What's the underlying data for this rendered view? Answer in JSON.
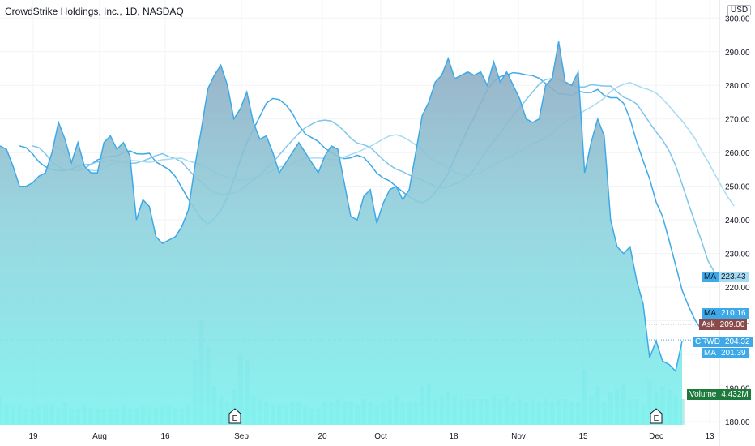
{
  "header": {
    "title": "CrowdStrike Holdings, Inc., 1D, NASDAQ",
    "currency": "USD"
  },
  "chart_data": {
    "type": "area",
    "x_tick_labels": [
      "19",
      "Aug",
      "16",
      "Sep",
      "20",
      "Oct",
      "18",
      "Nov",
      "15",
      "Dec",
      "13"
    ],
    "y_tick_labels": [
      "180.00",
      "190.00",
      "200.00",
      "210.00",
      "220.00",
      "230.00",
      "240.00",
      "250.00",
      "260.00",
      "270.00",
      "280.00",
      "290.00",
      "300.00"
    ],
    "ylim": [
      180,
      302
    ],
    "series": [
      {
        "name": "CRWD",
        "values": [
          262,
          261,
          256,
          250,
          250,
          251,
          253,
          254,
          260,
          269,
          264,
          257,
          263,
          256,
          254,
          254,
          263,
          265,
          261,
          263,
          259,
          240,
          246,
          244,
          235,
          233,
          234,
          235,
          238,
          243,
          256,
          267,
          279,
          283,
          286,
          280,
          270,
          273,
          278,
          269,
          264,
          265,
          260,
          254,
          257,
          260,
          263,
          260,
          257,
          254,
          259,
          262,
          261,
          251,
          241,
          240,
          247,
          249,
          239,
          245,
          249,
          250,
          246,
          249,
          260,
          271,
          275,
          281,
          283,
          288,
          282,
          283,
          284,
          283,
          284,
          280,
          287,
          281,
          284,
          280,
          276,
          270,
          269,
          270,
          280,
          282,
          293,
          281,
          280,
          284,
          254,
          263,
          270,
          265,
          240,
          232,
          230,
          232,
          222,
          215,
          199,
          204,
          198,
          197,
          195,
          204
        ],
        "color": "#3da9e8"
      },
      {
        "name": "MA",
        "values": [],
        "color": "#3da9e8"
      },
      {
        "name": "MA",
        "values": [],
        "color": "#7fc6ea"
      },
      {
        "name": "MA",
        "values": [],
        "color": "#a7dbf2"
      }
    ],
    "volume": [
      9,
      6,
      6,
      6,
      5,
      5,
      6,
      6,
      6,
      5,
      7,
      5,
      5,
      6,
      5,
      5,
      5,
      5,
      5,
      6,
      5,
      5,
      6,
      5,
      5,
      6,
      6,
      5,
      5,
      6,
      20,
      32,
      24,
      12,
      9,
      7,
      11,
      22,
      20,
      9,
      8,
      7,
      6,
      6,
      6,
      7,
      7,
      6,
      5,
      5,
      7,
      7,
      8,
      7,
      7,
      6,
      8,
      7,
      6,
      7,
      8,
      9,
      7,
      7,
      7,
      12,
      13,
      8,
      9,
      10,
      9,
      8,
      8,
      8,
      8,
      8,
      9,
      8,
      9,
      7,
      8,
      7,
      8,
      7,
      8,
      7,
      8,
      8,
      7,
      7,
      17,
      9,
      12,
      7,
      10,
      11,
      13,
      8,
      8,
      6,
      14,
      10,
      12,
      11,
      9,
      8
    ],
    "last_labels": {
      "ma1_label": "MA",
      "ma1_value": "223.43",
      "ma2_label": "MA",
      "ma2_value": "210.16",
      "ask_label": "Ask",
      "ask_value": "209.00",
      "crwd_label": "CRWD",
      "crwd_value": "204.32",
      "ma3_label": "MA",
      "ma3_value": "201.39",
      "volume_label": "Volume",
      "volume_value": "4.432M"
    },
    "earnings_marker": "E"
  }
}
